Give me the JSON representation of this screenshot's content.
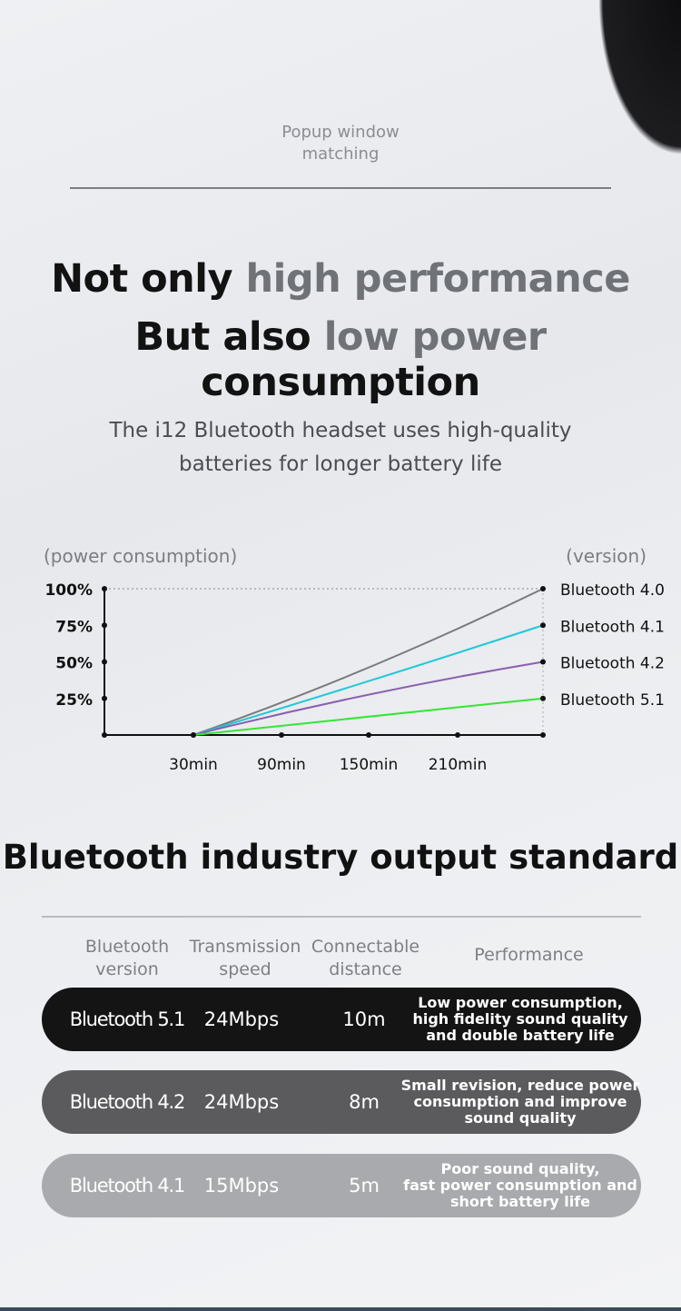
{
  "header": {
    "popup_line1": "Popup window",
    "popup_line2": "matching"
  },
  "headline": {
    "line1_a": "Not only ",
    "line1_b": "high performance",
    "line2_a": "But also ",
    "line2_b": "low power",
    "line2_c": " consumption"
  },
  "subtitle": {
    "line1": "The i12 Bluetooth headset uses high-quality",
    "line2": "batteries for longer battery life"
  },
  "chart_data": {
    "type": "line",
    "ylabel": "(power consumption)",
    "legend_title": "(version)",
    "y_ticks": [
      "100%",
      "75%",
      "50%",
      "25%"
    ],
    "x_ticks": [
      "30min",
      "90min",
      "150min",
      "210min"
    ],
    "ylim": [
      0,
      100
    ],
    "series": [
      {
        "name": "Bluetooth 4.0",
        "end_value": 100,
        "color": "#7a7a7a"
      },
      {
        "name": "Bluetooth 4.1",
        "end_value": 75,
        "color": "#1fc8d8"
      },
      {
        "name": "Bluetooth 4.2",
        "end_value": 50,
        "color": "#8a5fae"
      },
      {
        "name": "Bluetooth 5.1",
        "end_value": 25,
        "color": "#33e633"
      }
    ]
  },
  "standard": {
    "title": "Bluetooth industry output standard",
    "headers": {
      "version_l1": "Bluetooth",
      "version_l2": "version",
      "speed_l1": "Transmission",
      "speed_l2": "speed",
      "distance_l1": "Connectable",
      "distance_l2": "distance",
      "performance": "Performance"
    },
    "rows": [
      {
        "version": "Bluetooth 5.1",
        "speed": "24Mbps",
        "distance": "10m",
        "perf1": "Low power consumption,",
        "perf2": "high fidelity sound quality",
        "perf3": "and double battery life",
        "color": "#141414"
      },
      {
        "version": "Bluetooth 4.2",
        "speed": "24Mbps",
        "distance": "8m",
        "perf1": "Small revision, reduce power",
        "perf2": "consumption and improve",
        "perf3": "sound quality",
        "color": "#5b5b5d"
      },
      {
        "version": "Bluetooth 4.1",
        "speed": "15Mbps",
        "distance": "5m",
        "perf1": "Poor sound quality,",
        "perf2": "fast power consumption and",
        "perf3": "short battery life",
        "color": "#a9aaad"
      }
    ]
  }
}
